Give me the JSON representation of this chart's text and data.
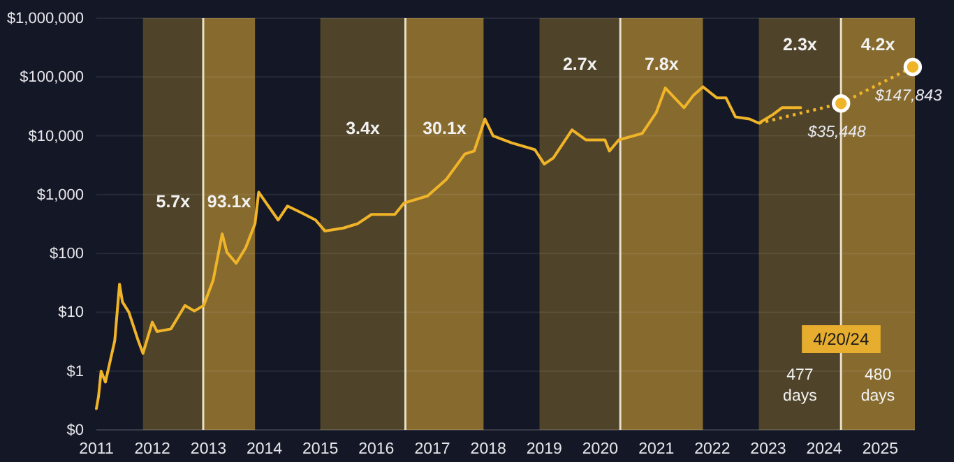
{
  "chart_data": {
    "type": "line",
    "xlim": [
      "2011-01-01",
      "2025-08-15"
    ],
    "xticks": [
      "2011",
      "2012",
      "2013",
      "2014",
      "2015",
      "2016",
      "2017",
      "2018",
      "2019",
      "2020",
      "2021",
      "2022",
      "2023",
      "2024",
      "2025"
    ],
    "ylim": [
      0.1,
      1000000
    ],
    "log": true,
    "grid": "y",
    "yticks": [
      {
        "value": 0.1,
        "label": "$0"
      },
      {
        "value": 1,
        "label": "$1"
      },
      {
        "value": 10,
        "label": "$10"
      },
      {
        "value": 100,
        "label": "$100"
      },
      {
        "value": 1000,
        "label": "$1,000"
      },
      {
        "value": 10000,
        "label": "$10,000"
      },
      {
        "value": 100000,
        "label": "$100,000"
      },
      {
        "value": 1000000,
        "label": "$1,000,000"
      }
    ],
    "series": [
      {
        "color": "#f0b429",
        "line_style": "solid",
        "marker": "none",
        "x": [
          "2011-01-01",
          "2011-01-15",
          "2011-02",
          "2011-03",
          "2011-05",
          "2011-06",
          "2011-06-20",
          "2011-08",
          "2011-10",
          "2011-11",
          "2012-01",
          "2012-02",
          "2012-05",
          "2012-08",
          "2012-10",
          "2012-12",
          "2013-02",
          "2013-04",
          "2013-05",
          "2013-07",
          "2013-09",
          "2013-11",
          "2013-11-25",
          "2014-01",
          "2014-04",
          "2014-06",
          "2014-09",
          "2014-12",
          "2015-02",
          "2015-06",
          "2015-09",
          "2015-12",
          "2016-05",
          "2016-07",
          "2016-12",
          "2017-04",
          "2017-08",
          "2017-10",
          "2017-12-10",
          "2018-02",
          "2018-06",
          "2018-11",
          "2019-01",
          "2019-03",
          "2019-07",
          "2019-10",
          "2020-02",
          "2020-03",
          "2020-05",
          "2020-10",
          "2021-01",
          "2021-03",
          "2021-05",
          "2021-07",
          "2021-09",
          "2021-11",
          "2022-02",
          "2022-04",
          "2022-06",
          "2022-09",
          "2022-11",
          "2023-02",
          "2023-04",
          "2023-08"
        ],
        "values": [
          0.23,
          0.37,
          1,
          0.65,
          3.3,
          30,
          15,
          10,
          3.3,
          2,
          6.8,
          4.7,
          5.2,
          13,
          10.5,
          13,
          35,
          215,
          105,
          68,
          125,
          320,
          1100,
          800,
          370,
          640,
          490,
          370,
          240,
          270,
          320,
          460,
          460,
          720,
          950,
          1800,
          4900,
          5500,
          19300,
          10000,
          7600,
          5800,
          3300,
          4200,
          12600,
          8500,
          8500,
          5500,
          8500,
          11000,
          25000,
          65000,
          44000,
          30000,
          49000,
          68000,
          44000,
          44000,
          21000,
          19300,
          16400,
          23000,
          30000,
          30000
        ]
      },
      {
        "color": "#f0b429",
        "line_style": "dotted",
        "x": [
          "2022-11",
          "2024-04-20"
        ],
        "values": [
          16400,
          35448
        ]
      },
      {
        "color": "#f0b429",
        "line_style": "dotted",
        "marker": "circle",
        "x": [
          "2024-04-20",
          "2025-08"
        ],
        "values": [
          35448,
          147843
        ],
        "value_labels": [
          "$35,448",
          "$147,843"
        ]
      }
    ],
    "bands": [
      {
        "axis": "x",
        "from": "2011-11",
        "to": "2012-11-28",
        "color": "#4f4329",
        "label": "5.7x"
      },
      {
        "axis": "x",
        "from": "2012-11-28",
        "to": "2013-11",
        "color": "#866a2e",
        "label": "93.1x"
      },
      {
        "axis": "x",
        "from": "2015-01",
        "to": "2016-07-09",
        "color": "#4f4329",
        "label": "3.4x"
      },
      {
        "axis": "x",
        "from": "2016-07-09",
        "to": "2017-12",
        "color": "#866a2e",
        "label": "30.1x"
      },
      {
        "axis": "x",
        "from": "2018-12",
        "to": "2020-05-11",
        "color": "#4f4329",
        "label": "2.7x"
      },
      {
        "axis": "x",
        "from": "2020-05-11",
        "to": "2021-11",
        "color": "#866a2e",
        "label": "7.8x"
      },
      {
        "axis": "x",
        "from": "2022-11",
        "to": "2024-04-20",
        "color": "#4f4329",
        "label": "2.3x"
      },
      {
        "axis": "x",
        "from": "2024-04-20",
        "to": "2025-08-15",
        "color": "#866a2e",
        "label": "4.2x"
      }
    ],
    "ref_lines": [
      {
        "axis": "x",
        "value": "2012-11-28",
        "color": "#e8e0cc"
      },
      {
        "axis": "x",
        "value": "2016-07-09",
        "color": "#e8e0cc"
      },
      {
        "axis": "x",
        "value": "2020-05-11",
        "color": "#e8e0cc"
      },
      {
        "axis": "x",
        "value": "2024-04-20",
        "color": "#e8e0cc",
        "label": "4/20/24"
      }
    ],
    "annotations": [
      "477 days",
      "480 days"
    ]
  }
}
